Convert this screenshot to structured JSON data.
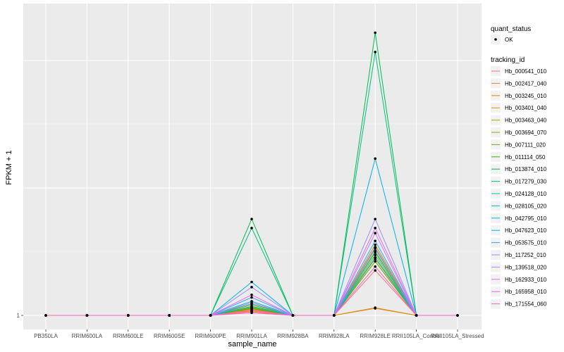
{
  "chart_data": {
    "type": "line",
    "xlabel": "sample_name",
    "ylabel": "FPKM + 1",
    "y_ticks": [
      1
    ],
    "grid": true,
    "categories": [
      "PB350LA",
      "RRIM600LA",
      "RRIM600LE",
      "RRIM600SE",
      "RRIM600PE",
      "RRIM901LA",
      "RRIM928BA",
      "RRIM928LA",
      "RRIM928LE",
      "RRII105LA_Control",
      "RRII105LA_Stressed"
    ],
    "legend_position": "right",
    "legend": {
      "quant_status_title": "quant_status",
      "quant_status_item": "OK",
      "tracking_title": "tracking_id"
    },
    "series": [
      {
        "name": "Hb_000541_010",
        "color": "#F8766D",
        "values": [
          1,
          1,
          1,
          1,
          1,
          1.28,
          1,
          1,
          4.5,
          1,
          1
        ]
      },
      {
        "name": "Hb_002417_040",
        "color": "#F07F3A",
        "values": [
          1,
          1,
          1,
          1,
          1,
          1.34,
          1,
          1,
          1.55,
          1,
          1
        ]
      },
      {
        "name": "Hb_003245_010",
        "color": "#E38900",
        "values": [
          1,
          1,
          1,
          1,
          1,
          1.46,
          1,
          1,
          5.4,
          1,
          1
        ]
      },
      {
        "name": "Hb_003401_040",
        "color": "#D09400",
        "values": [
          1,
          1,
          1,
          1,
          1,
          1.5,
          1,
          1,
          1.6,
          1,
          1
        ]
      },
      {
        "name": "Hb_003463_040",
        "color": "#B79F00",
        "values": [
          1,
          1,
          1,
          1,
          1,
          1.6,
          1,
          1,
          6.0,
          1,
          1
        ]
      },
      {
        "name": "Hb_003694_070",
        "color": "#9AA800",
        "values": [
          1,
          1,
          1,
          1,
          1,
          1.8,
          1,
          1,
          6.5,
          1,
          1
        ]
      },
      {
        "name": "Hb_007111_020",
        "color": "#72B000",
        "values": [
          1,
          1,
          1,
          1,
          1,
          1.65,
          1,
          1,
          5.7,
          1,
          1
        ]
      },
      {
        "name": "Hb_011114_050",
        "color": "#39B600",
        "values": [
          1,
          1,
          1,
          1,
          1,
          1.55,
          1,
          1,
          5.2,
          1,
          1
        ]
      },
      {
        "name": "Hb_013874_010",
        "color": "#00BB4E",
        "values": [
          1,
          1,
          1,
          1,
          1,
          8.5,
          1,
          1,
          23.0,
          1,
          1
        ]
      },
      {
        "name": "Hb_017279_030",
        "color": "#00BF7D",
        "values": [
          1,
          1,
          1,
          1,
          1,
          7.8,
          1,
          1,
          21.5,
          1,
          1
        ]
      },
      {
        "name": "Hb_024128_010",
        "color": "#00C1A3",
        "values": [
          1,
          1,
          1,
          1,
          1,
          1.9,
          1,
          1,
          6.2,
          1,
          1
        ]
      },
      {
        "name": "Hb_028105_020",
        "color": "#00BFC4",
        "values": [
          1,
          1,
          1,
          1,
          1,
          2.1,
          1,
          1,
          5.9,
          1,
          1
        ]
      },
      {
        "name": "Hb_042795_010",
        "color": "#00BAE0",
        "values": [
          1,
          1,
          1,
          1,
          1,
          1.7,
          1,
          1,
          5.5,
          1,
          1
        ]
      },
      {
        "name": "Hb_047623_010",
        "color": "#00B0F6",
        "values": [
          1,
          1,
          1,
          1,
          1,
          3.6,
          1,
          1,
          13.2,
          1,
          1
        ]
      },
      {
        "name": "Hb_053575_010",
        "color": "#35A2FF",
        "values": [
          1,
          1,
          1,
          1,
          1,
          2.4,
          1,
          1,
          6.8,
          1,
          1
        ]
      },
      {
        "name": "Hb_117252_010",
        "color": "#9590FF",
        "values": [
          1,
          1,
          1,
          1,
          1,
          3.2,
          1,
          1,
          8.5,
          1,
          1
        ]
      },
      {
        "name": "Hb_139518_020",
        "color": "#C77CFF",
        "values": [
          1,
          1,
          1,
          1,
          1,
          2.0,
          1,
          1,
          7.4,
          1,
          1
        ]
      },
      {
        "name": "Hb_162933_010",
        "color": "#E76BF3",
        "values": [
          1,
          1,
          1,
          1,
          1,
          2.6,
          1,
          1,
          7.8,
          1,
          1
        ]
      },
      {
        "name": "Hb_165958_010",
        "color": "#FA62DB",
        "values": [
          1,
          1,
          1,
          1,
          1,
          1.4,
          1,
          1,
          6.3,
          1,
          1
        ]
      },
      {
        "name": "Hb_171554_060",
        "color": "#FF62BC",
        "values": [
          1,
          1,
          1,
          1,
          1,
          1.2,
          1,
          1,
          4.8,
          1,
          1
        ]
      }
    ]
  }
}
